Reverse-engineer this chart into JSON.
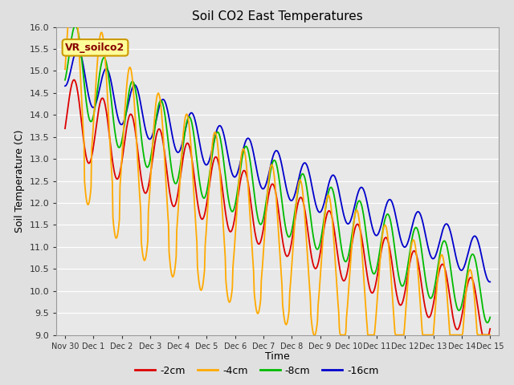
{
  "title": "Soil CO2 East Temperatures",
  "ylabel": "Soil Temperature (C)",
  "xlabel": "Time",
  "ylim": [
    9.0,
    16.0
  ],
  "yticks": [
    9.0,
    9.5,
    10.0,
    10.5,
    11.0,
    11.5,
    12.0,
    12.5,
    13.0,
    13.5,
    14.0,
    14.5,
    15.0,
    15.5,
    16.0
  ],
  "x_tick_labels": [
    "Nov 30",
    "Dec 1",
    "Dec 2",
    "Dec 3",
    "Dec 4",
    "Dec 5",
    "Dec 6",
    "Dec 7",
    "Dec 8",
    "Dec 9",
    "Dec 10",
    "Dec 11",
    "Dec 12",
    "Dec 13",
    "Dec 14",
    "Dec 15"
  ],
  "legend_label": "VR_soilco2",
  "series_labels": [
    "-2cm",
    "-4cm",
    "-8cm",
    "-16cm"
  ],
  "series_colors": [
    "#dd0000",
    "#ffaa00",
    "#00bb00",
    "#0000cc"
  ],
  "background_color": "#e0e0e0",
  "plot_bg_color": "#e8e8e8",
  "grid_color": "#ffffff",
  "title_fontsize": 11,
  "axis_fontsize": 9,
  "tick_fontsize": 8,
  "legend_box_color": "#ffff99",
  "legend_box_edge": "#cc9900"
}
